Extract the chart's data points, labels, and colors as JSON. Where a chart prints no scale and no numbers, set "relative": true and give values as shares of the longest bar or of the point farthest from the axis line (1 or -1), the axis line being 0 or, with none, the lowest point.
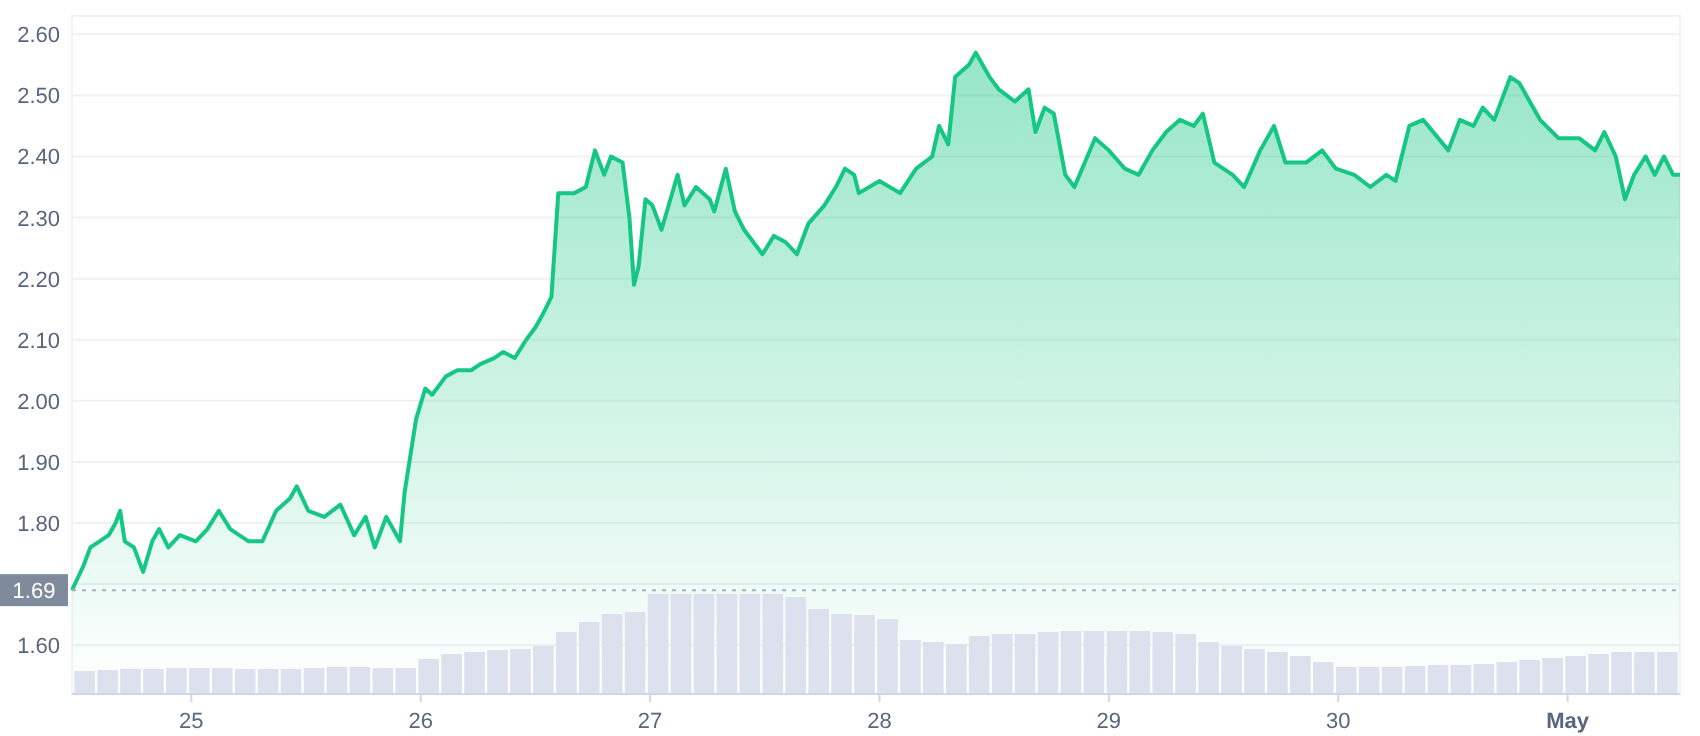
{
  "chart_data": [
    {
      "type": "area",
      "x": [
        24.48,
        24.53,
        24.56,
        24.6,
        24.64,
        24.67,
        24.69,
        24.71,
        24.75,
        24.79,
        24.83,
        24.86,
        24.9,
        24.95,
        25.02,
        25.07,
        25.12,
        25.17,
        25.25,
        25.31,
        25.37,
        25.43,
        25.46,
        25.51,
        25.58,
        25.65,
        25.71,
        25.76,
        25.8,
        25.85,
        25.91,
        25.93,
        25.98,
        26.02,
        26.05,
        26.11,
        26.16,
        26.22,
        26.26,
        26.32,
        26.36,
        26.41,
        26.46,
        26.5,
        26.53,
        26.57,
        26.6,
        26.67,
        26.72,
        26.76,
        26.8,
        26.83,
        26.88,
        26.91,
        26.93,
        26.95,
        26.98,
        27.01,
        27.05,
        27.12,
        27.15,
        27.2,
        27.26,
        27.28,
        27.33,
        27.37,
        27.41,
        27.49,
        27.54,
        27.59,
        27.64,
        27.69,
        27.76,
        27.81,
        27.85,
        27.89,
        27.91,
        28.0,
        28.09,
        28.16,
        28.23,
        28.26,
        28.3,
        28.33,
        28.39,
        28.42,
        28.48,
        28.52,
        28.59,
        28.65,
        28.68,
        28.72,
        28.76,
        28.81,
        28.85,
        28.94,
        29.0,
        29.07,
        29.13,
        29.19,
        29.25,
        29.31,
        29.37,
        29.41,
        29.46,
        29.54,
        29.59,
        29.66,
        29.72,
        29.77,
        29.86,
        29.93,
        29.99,
        30.07,
        30.14,
        30.21,
        30.25,
        30.31,
        30.37,
        30.48,
        30.53,
        30.59,
        30.63,
        30.68,
        30.75,
        30.79,
        30.88,
        30.96,
        31.05,
        31.12,
        31.16,
        31.21,
        31.25,
        31.29,
        31.34,
        31.38,
        31.42,
        31.46,
        31.49
      ],
      "series": [
        {
          "color": "#16c784",
          "values": [
            1.69,
            1.73,
            1.76,
            1.77,
            1.78,
            1.8,
            1.82,
            1.77,
            1.76,
            1.72,
            1.77,
            1.79,
            1.76,
            1.78,
            1.77,
            1.79,
            1.82,
            1.79,
            1.77,
            1.77,
            1.82,
            1.84,
            1.86,
            1.82,
            1.81,
            1.83,
            1.78,
            1.81,
            1.76,
            1.81,
            1.77,
            1.85,
            1.97,
            2.02,
            2.01,
            2.04,
            2.05,
            2.05,
            2.06,
            2.07,
            2.08,
            2.07,
            2.1,
            2.12,
            2.14,
            2.17,
            2.34,
            2.34,
            2.35,
            2.41,
            2.37,
            2.4,
            2.39,
            2.3,
            2.19,
            2.22,
            2.33,
            2.32,
            2.28,
            2.37,
            2.32,
            2.35,
            2.33,
            2.31,
            2.38,
            2.31,
            2.28,
            2.24,
            2.27,
            2.26,
            2.24,
            2.29,
            2.32,
            2.35,
            2.38,
            2.37,
            2.34,
            2.36,
            2.34,
            2.38,
            2.4,
            2.45,
            2.42,
            2.53,
            2.55,
            2.57,
            2.53,
            2.51,
            2.49,
            2.51,
            2.44,
            2.48,
            2.47,
            2.37,
            2.35,
            2.43,
            2.41,
            2.38,
            2.37,
            2.41,
            2.44,
            2.46,
            2.45,
            2.47,
            2.39,
            2.37,
            2.35,
            2.41,
            2.45,
            2.39,
            2.39,
            2.41,
            2.38,
            2.37,
            2.35,
            2.37,
            2.36,
            2.45,
            2.46,
            2.41,
            2.46,
            2.45,
            2.48,
            2.46,
            2.53,
            2.52,
            2.46,
            2.43,
            2.43,
            2.41,
            2.44,
            2.4,
            2.33,
            2.37,
            2.4,
            2.37,
            2.4,
            2.37,
            2.37
          ]
        }
      ],
      "xlim": [
        24.48,
        31.49
      ],
      "ylim": [
        1.52,
        2.63
      ],
      "xticks": [
        25,
        26,
        27,
        28,
        29,
        30,
        {
          "value": 31,
          "label": "May"
        }
      ],
      "yticks": [
        {
          "value": 1.6,
          "label": "1.60"
        },
        {
          "value": 1.7,
          "label": null
        },
        {
          "value": 1.8,
          "label": "1.80"
        },
        {
          "value": 1.9,
          "label": "1.90"
        },
        {
          "value": 2.0,
          "label": "2.00"
        },
        {
          "value": 2.1,
          "label": "2.10"
        },
        {
          "value": 2.2,
          "label": "2.20"
        },
        {
          "value": 2.3,
          "label": "2.30"
        },
        {
          "value": 2.4,
          "label": "2.40"
        },
        {
          "value": 2.5,
          "label": "2.50"
        },
        {
          "value": 2.6,
          "label": "2.60"
        }
      ],
      "grid": "y",
      "ref_lines": [
        {
          "axis": "y",
          "value": 1.69,
          "label": "1.69",
          "color": "#a6b0c3",
          "line_style": "dotted"
        }
      ]
    },
    {
      "type": "bar",
      "relative": true,
      "color": "#dde1ee",
      "categories": [
        null,
        null,
        null,
        null,
        null,
        null,
        null,
        null,
        null,
        null,
        null,
        null,
        null,
        null,
        null,
        null,
        null,
        null,
        null,
        null,
        null,
        null,
        null,
        null,
        null,
        null,
        null,
        null,
        null,
        null,
        null,
        null,
        null,
        null,
        null,
        null,
        null,
        null,
        null,
        null,
        null,
        null,
        null,
        null,
        null,
        null,
        null,
        null,
        null,
        null,
        null,
        null,
        null,
        null,
        null,
        null,
        null,
        null,
        null,
        null,
        null,
        null,
        null,
        null,
        null,
        null,
        null,
        null,
        null,
        null
      ],
      "values": [
        0.23,
        0.24,
        0.25,
        0.25,
        0.26,
        0.26,
        0.26,
        0.25,
        0.25,
        0.25,
        0.26,
        0.27,
        0.27,
        0.26,
        0.26,
        0.35,
        0.4,
        0.42,
        0.44,
        0.45,
        0.48,
        0.62,
        0.72,
        0.8,
        0.82,
        1,
        1,
        1,
        1,
        1,
        1,
        0.97,
        0.85,
        0.8,
        0.79,
        0.75,
        0.54,
        0.52,
        0.5,
        0.58,
        0.6,
        0.6,
        0.62,
        0.63,
        0.63,
        0.63,
        0.63,
        0.62,
        0.6,
        0.52,
        0.48,
        0.45,
        0.42,
        0.38,
        0.32,
        0.27,
        0.27,
        0.27,
        0.28,
        0.29,
        0.29,
        0.3,
        0.32,
        0.34,
        0.36,
        0.38,
        0.4,
        0.42,
        0.42,
        0.42
      ]
    }
  ]
}
